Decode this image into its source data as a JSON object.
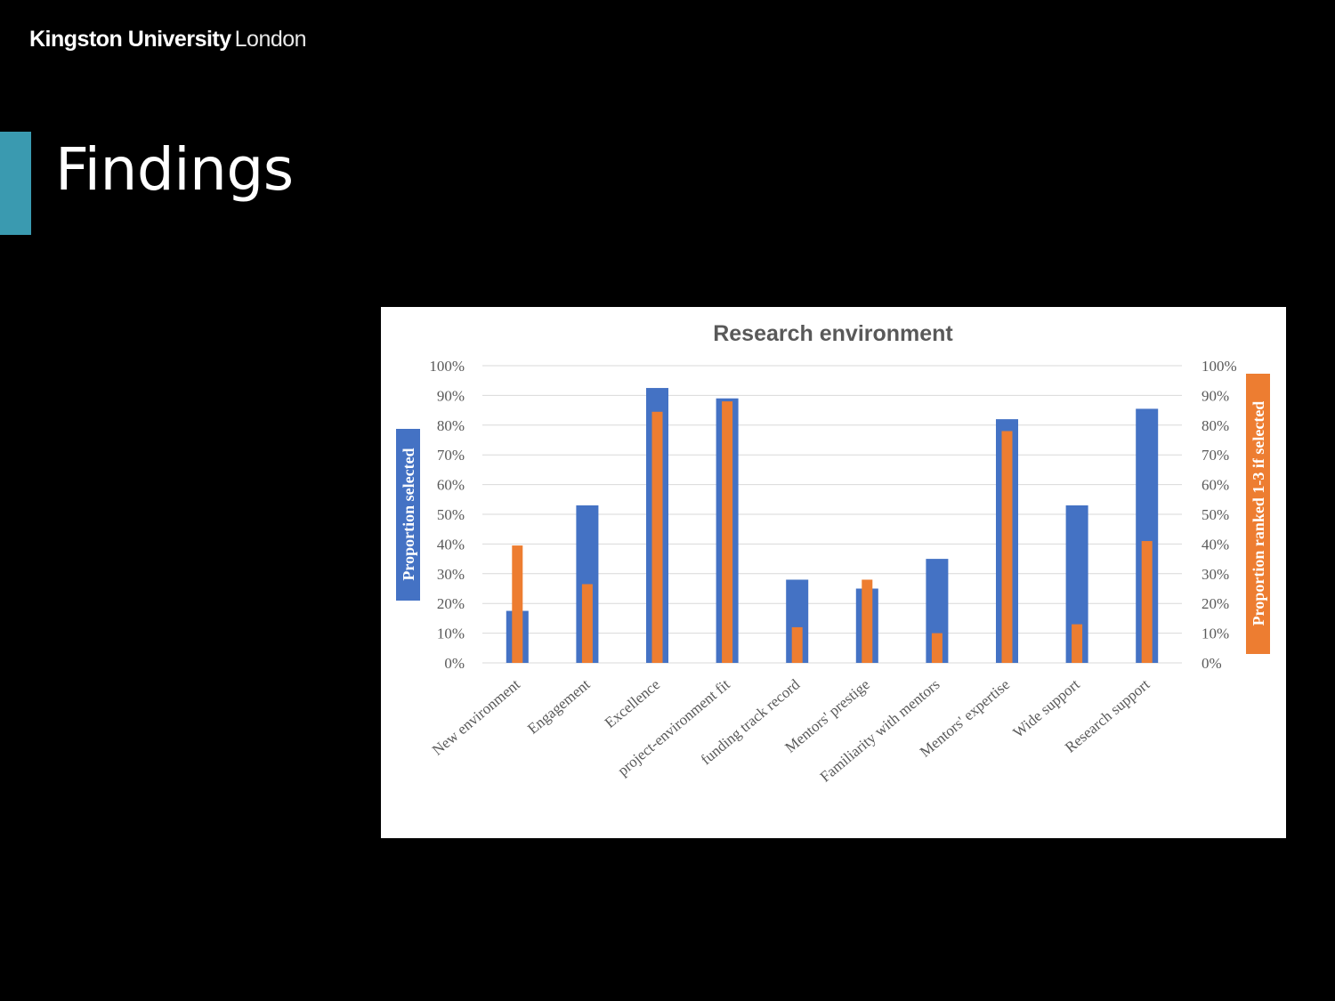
{
  "header": {
    "logo_brand": "Kingston University",
    "logo_city": "London"
  },
  "slide": {
    "title": "Findings"
  },
  "colors": {
    "background": "#000000",
    "accent": "#3a9ab0",
    "series_selected": "#4472c4",
    "series_ranked": "#ed7d31"
  },
  "chart_data": {
    "type": "bar",
    "title": "Research environment",
    "ylabel": "Proportion selected",
    "ylabel_right": "Proportion ranked 1-3 if selected",
    "ylim": [
      0,
      100
    ],
    "ylim_right": [
      0,
      100
    ],
    "y_ticks": [
      "0%",
      "10%",
      "20%",
      "30%",
      "40%",
      "50%",
      "60%",
      "70%",
      "80%",
      "90%",
      "100%"
    ],
    "grid": true,
    "categories": [
      "New environment",
      "Engagement",
      "Excellence",
      "project-environment fit",
      "funding track record",
      "Mentors' prestige",
      "Familiarity with mentors",
      "Mentors' expertise",
      "Wide support",
      "Research support"
    ],
    "series": [
      {
        "axis": "left",
        "values": [
          17.5,
          53,
          92.5,
          89,
          28,
          25,
          35,
          82,
          53,
          85.5
        ]
      },
      {
        "axis": "right",
        "values": [
          39.5,
          26.5,
          84.5,
          88,
          12,
          28,
          10,
          78,
          13,
          41
        ]
      }
    ]
  }
}
